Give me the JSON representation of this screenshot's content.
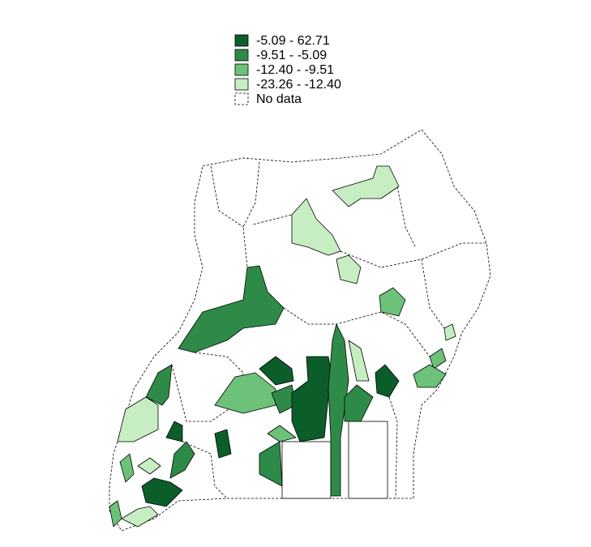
{
  "legend": {
    "items": [
      {
        "label": "-5.09 - 62.71",
        "color": "#0b5e2a"
      },
      {
        "label": "-9.51 - -5.09",
        "color": "#2e8b47"
      },
      {
        "label": "-12.40 - -9.51",
        "color": "#6cc278"
      },
      {
        "label": "-23.26 - -12.40",
        "color": "#c7eec3"
      }
    ],
    "no_data": "No data"
  }
}
